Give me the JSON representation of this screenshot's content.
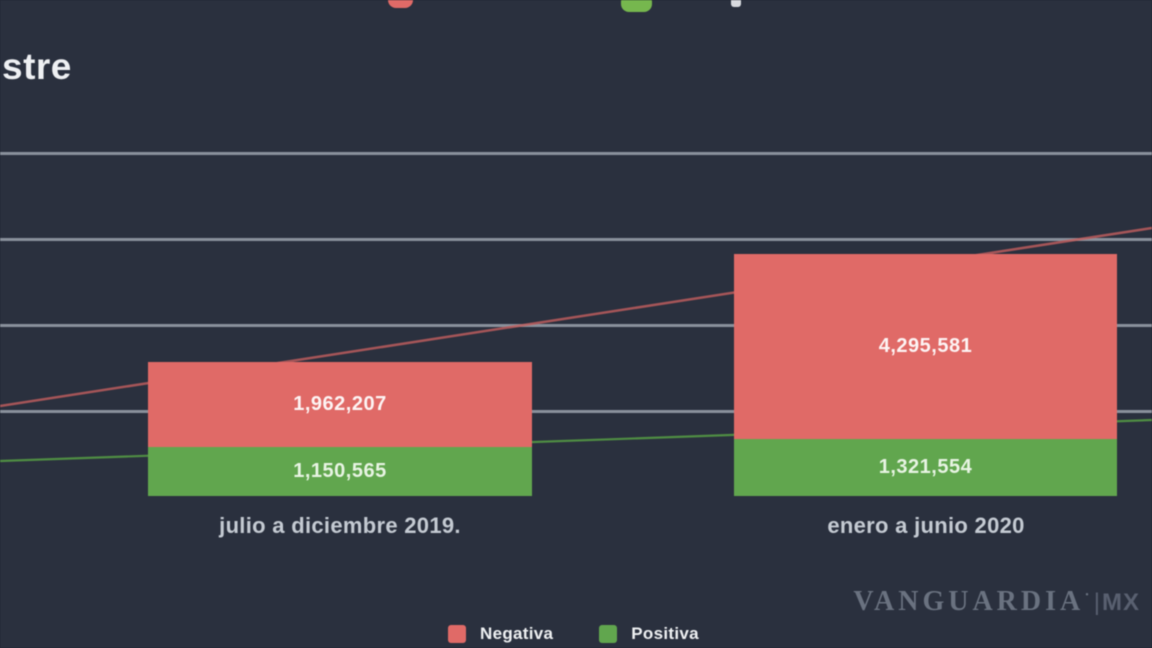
{
  "page": {
    "title_fragment": "stre",
    "background_color": "#2a303e"
  },
  "chart_data": {
    "type": "bar",
    "stacked": true,
    "categories": [
      "julio a diciembre 2019.",
      "enero a junio 2020"
    ],
    "series": [
      {
        "name": "Negativa",
        "color": "#e06a67",
        "values": [
          1962207,
          4295581
        ],
        "value_labels": [
          "1,962,207",
          "4,295,581"
        ]
      },
      {
        "name": "Positiva",
        "color": "#61a64e",
        "values": [
          1150565,
          1321554
        ],
        "value_labels": [
          "1,150,565",
          "1,321,554"
        ]
      }
    ],
    "trend_lines": [
      {
        "series": "Negativa",
        "color": "#c45f5f"
      },
      {
        "series": "Positiva",
        "color": "#569e45"
      }
    ],
    "ylim": [
      0,
      8000000
    ],
    "gridline_values": [
      2000000,
      4000000,
      6000000,
      8000000
    ],
    "grid": true,
    "legend_position": "bottom",
    "gridline_color": "#9aa1ab"
  },
  "legend": {
    "items": [
      {
        "label": "Negativa",
        "color": "#e06a67"
      },
      {
        "label": "Positiva",
        "color": "#61a64e"
      }
    ]
  },
  "watermark": {
    "brand": "VANGUARDIA",
    "suffix": "MX"
  }
}
